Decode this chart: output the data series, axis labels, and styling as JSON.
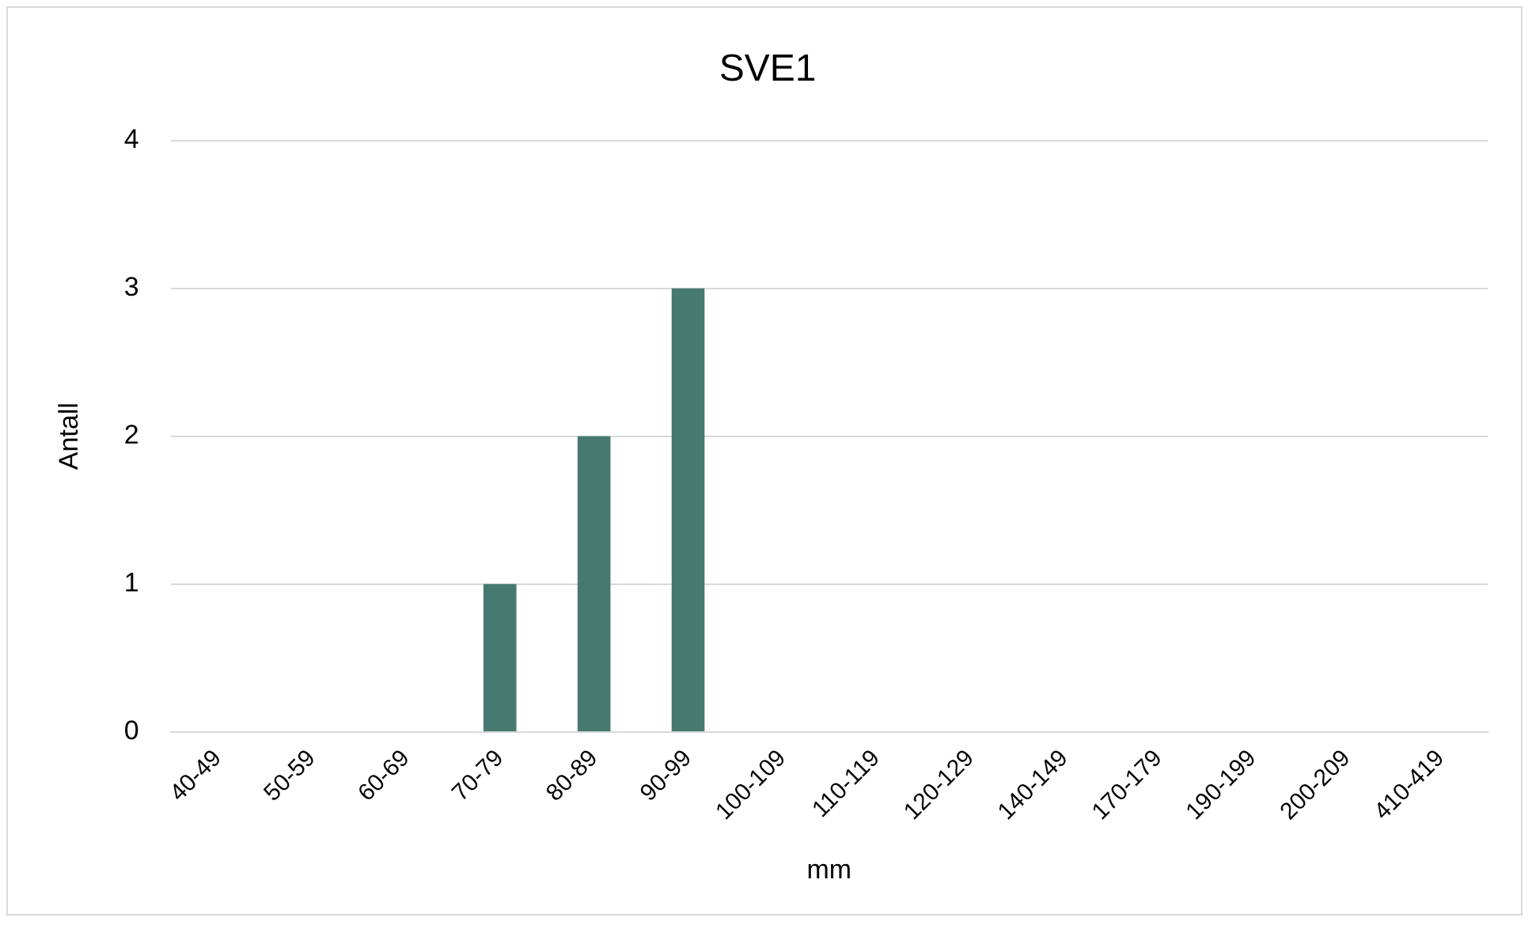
{
  "chart_data": {
    "type": "bar",
    "title": "SVE1",
    "xlabel": "mm",
    "ylabel": "Antall",
    "categories": [
      "40-49",
      "50-59",
      "60-69",
      "70-79",
      "80-89",
      "90-99",
      "100-109",
      "110-119",
      "120-129",
      "140-149",
      "170-179",
      "190-199",
      "200-209",
      "410-419"
    ],
    "values": [
      0,
      0,
      0,
      1,
      2,
      3,
      0,
      0,
      0,
      0,
      0,
      0,
      0,
      0
    ],
    "color": "#467a70",
    "ylim": [
      0,
      4
    ],
    "yticks": [
      0,
      1,
      2,
      3,
      4
    ],
    "grid": "y",
    "legend": false
  }
}
